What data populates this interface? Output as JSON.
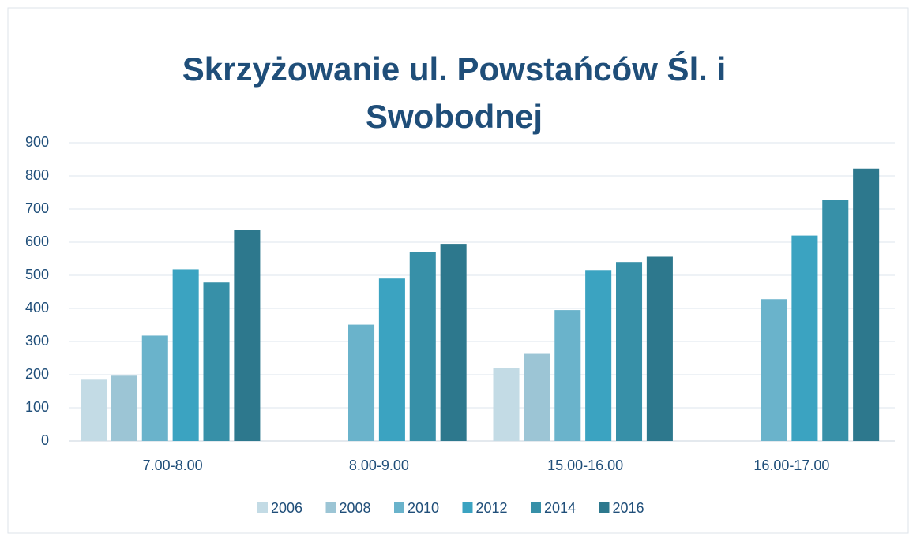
{
  "chart_data": {
    "type": "bar",
    "title": "Skrzyżowanie ul. Powstańców Śl. i Swobodnej",
    "categories": [
      "7.00-8.00",
      "8.00-9.00",
      "15.00-16.00",
      "16.00-17.00"
    ],
    "series": [
      {
        "name": "2006",
        "color": "#c3dbe5",
        "values": [
          185,
          null,
          220,
          null
        ]
      },
      {
        "name": "2008",
        "color": "#9cc5d5",
        "values": [
          197,
          null,
          263,
          null
        ]
      },
      {
        "name": "2010",
        "color": "#6ab3cb",
        "values": [
          318,
          351,
          395,
          428
        ]
      },
      {
        "name": "2012",
        "color": "#3ba3c1",
        "values": [
          518,
          490,
          516,
          620
        ]
      },
      {
        "name": "2014",
        "color": "#3790a8",
        "values": [
          478,
          570,
          540,
          728
        ]
      },
      {
        "name": "2016",
        "color": "#2d788d",
        "values": [
          637,
          595,
          556,
          822
        ]
      }
    ],
    "ylim": [
      0,
      900
    ],
    "yticks": [
      0,
      100,
      200,
      300,
      400,
      500,
      600,
      700,
      800,
      900
    ],
    "grid": true,
    "legend": "bottom"
  }
}
